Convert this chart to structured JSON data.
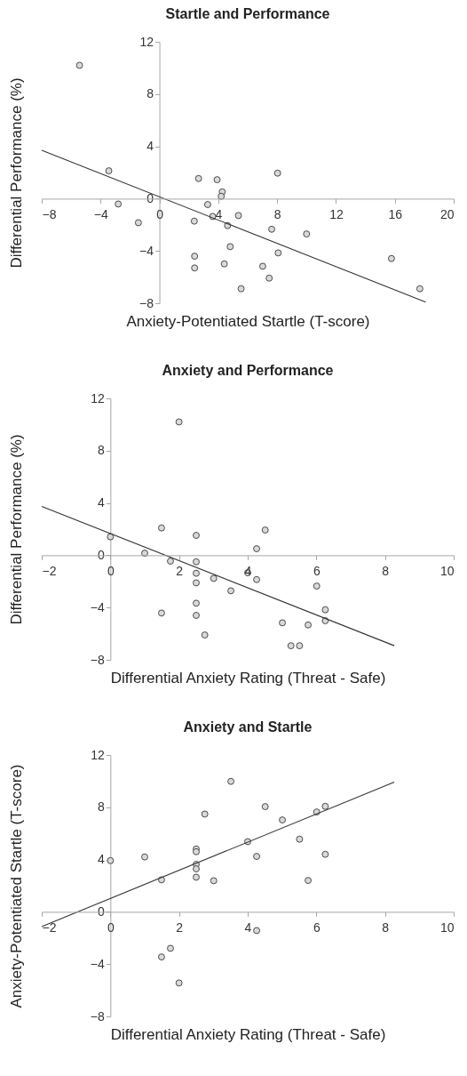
{
  "chart_data": [
    {
      "type": "scatter",
      "title": "Startle and Performance",
      "xlabel": "Anxiety-Potentiated Startle (T-score)",
      "ylabel": "Differential Performance (%)",
      "xlim": [
        -8,
        20
      ],
      "ylim": [
        -8,
        12
      ],
      "xticks": [
        -8,
        -4,
        0,
        4,
        8,
        12,
        16,
        20
      ],
      "yticks": [
        -8,
        -4,
        0,
        4,
        8,
        12
      ],
      "grid": false,
      "series": [
        {
          "marker": "circle",
          "color": "#d9d9d9",
          "x": [
            -5.43,
            -3.44,
            -2.8,
            -1.43,
            2.37,
            2.66,
            2.39,
            2.39,
            3.28,
            3.62,
            3.92,
            4.27,
            4.2,
            4.63,
            4.81,
            4.41,
            5.37,
            5.55,
            7.02,
            7.46,
            7.63,
            8.03,
            8.07,
            10.0,
            15.77,
            17.7
          ],
          "values": [
            10.2,
            2.13,
            -0.41,
            -1.84,
            -1.72,
            1.54,
            -4.4,
            -5.3,
            -0.45,
            -1.36,
            1.45,
            0.52,
            0.18,
            -2.06,
            -3.67,
            -4.99,
            -1.29,
            -6.89,
            -5.17,
            -6.08,
            -2.34,
            1.95,
            -4.15,
            -2.7,
            -4.58,
            -6.89
          ]
        },
        {
          "type": "line",
          "color": "#333333",
          "x": [
            -8,
            18.1
          ],
          "values": [
            3.7,
            -7.91
          ]
        }
      ]
    },
    {
      "type": "scatter",
      "title": "Anxiety and Performance",
      "xlabel": "Differential Anxiety Rating (Threat - Safe)",
      "ylabel": "Differential Performance (%)",
      "xlim": [
        -2,
        10
      ],
      "ylim": [
        -8,
        12
      ],
      "xticks": [
        -2,
        0,
        2,
        4,
        6,
        8,
        10
      ],
      "yticks": [
        -8,
        -4,
        0,
        4,
        8,
        12
      ],
      "grid": false,
      "series": [
        {
          "marker": "circle",
          "color": "#d9d9d9",
          "x": [
            2.0,
            1.49,
            0,
            1.0,
            1.75,
            2.5,
            2.5,
            2.5,
            2.5,
            2.5,
            2.5,
            1.49,
            2.75,
            3.01,
            3.51,
            4.0,
            4.26,
            4.26,
            4.51,
            5.01,
            5.26,
            5.51,
            5.76,
            6.01,
            6.26,
            6.26
          ],
          "values": [
            10.2,
            2.09,
            1.41,
            0.16,
            -0.45,
            1.52,
            -0.5,
            -1.38,
            -2.11,
            -3.67,
            -4.6,
            -4.42,
            -6.1,
            -1.77,
            -2.72,
            -1.34,
            -1.86,
            0.5,
            1.93,
            -5.17,
            -6.92,
            -6.92,
            -5.33,
            -2.36,
            -4.17,
            -5.01
          ]
        },
        {
          "type": "line",
          "color": "#333333",
          "x": [
            -2,
            8.27
          ],
          "values": [
            3.74,
            -6.92
          ]
        }
      ]
    },
    {
      "type": "scatter",
      "title": "Anxiety and Startle",
      "xlabel": "Differential Anxiety Rating (Threat - Safe)",
      "ylabel": "Anxiety-Potentiated Startle (T-score)",
      "xlim": [
        -2,
        10
      ],
      "ylim": [
        -8,
        12
      ],
      "xticks": [
        -2,
        0,
        2,
        4,
        6,
        8,
        10
      ],
      "yticks": [
        -8,
        -4,
        0,
        4,
        8,
        12
      ],
      "grid": false,
      "series": [
        {
          "marker": "circle",
          "color": "#d9d9d9",
          "x": [
            3.51,
            4.51,
            6.26,
            6.01,
            2.75,
            5.01,
            5.51,
            4.0,
            2.5,
            2.5,
            1.0,
            0,
            4.26,
            6.26,
            2.5,
            2.5,
            2.5,
            1.49,
            3.01,
            5.76,
            4.26,
            1.75,
            1.49,
            2.0
          ],
          "values": [
            9.98,
            8.05,
            8.07,
            7.64,
            7.48,
            7.03,
            5.56,
            5.37,
            4.81,
            4.6,
            4.2,
            3.92,
            4.24,
            4.4,
            3.63,
            3.29,
            2.65,
            2.45,
            2.38,
            2.4,
            -1.43,
            -2.79,
            -3.45,
            -5.44
          ]
        },
        {
          "type": "line",
          "color": "#333333",
          "x": [
            -2,
            8.27
          ],
          "values": [
            -1.13,
            9.93
          ]
        }
      ]
    }
  ]
}
